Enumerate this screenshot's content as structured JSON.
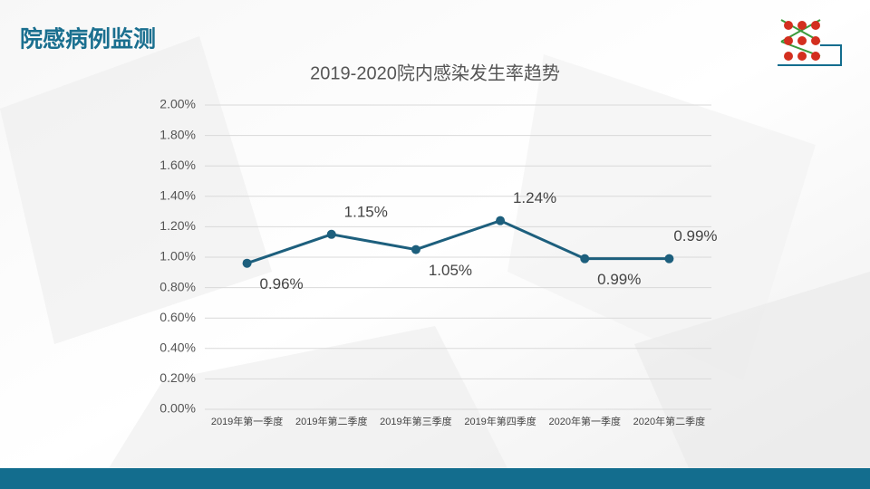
{
  "page_title": "院感病例监测",
  "chart_data": {
    "type": "line",
    "title": "2019-2020院内感染发生率趋势",
    "categories": [
      "2019年第一季度",
      "2019年第二季度",
      "2019年第三季度",
      "2019年第四季度",
      "2020年第一季度",
      "2020年第二季度"
    ],
    "values": [
      0.96,
      1.15,
      1.05,
      1.24,
      0.99,
      0.99
    ],
    "value_labels": [
      "0.96%",
      "1.15%",
      "1.05%",
      "1.24%",
      "0.99%",
      "0.99%"
    ],
    "color": "#1d5f7d",
    "ylim": [
      0,
      2
    ],
    "yticks": [
      {
        "value": 0,
        "label": "0.00%"
      },
      {
        "value": 0.2,
        "label": "0.20%"
      },
      {
        "value": 0.4,
        "label": "0.40%"
      },
      {
        "value": 0.6,
        "label": "0.60%"
      },
      {
        "value": 0.8,
        "label": "0.80%"
      },
      {
        "value": 1.0,
        "label": "1.00%"
      },
      {
        "value": 1.2,
        "label": "1.20%"
      },
      {
        "value": 1.4,
        "label": "1.40%"
      },
      {
        "value": 1.6,
        "label": "1.60%"
      },
      {
        "value": 1.8,
        "label": "1.80%"
      },
      {
        "value": 2.0,
        "label": "2.00%"
      }
    ],
    "grid": true
  }
}
